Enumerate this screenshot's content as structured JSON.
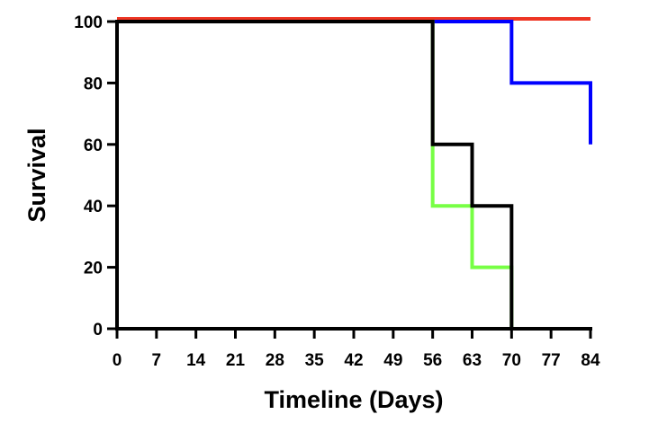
{
  "chart_data": {
    "type": "line",
    "style": "step",
    "title": "",
    "xlabel": "Timeline (Days)",
    "ylabel": "Survival",
    "xlim": [
      0,
      84
    ],
    "ylim": [
      0,
      100
    ],
    "xticks": [
      0,
      7,
      14,
      21,
      28,
      35,
      42,
      49,
      56,
      63,
      70,
      77,
      84
    ],
    "yticks": [
      0,
      20,
      40,
      60,
      80,
      100
    ],
    "grid": false,
    "legend": "none",
    "series": [
      {
        "name": "red",
        "color": "#ee3524",
        "x": [
          0,
          84
        ],
        "y": [
          100,
          100
        ]
      },
      {
        "name": "blue",
        "color": "#0000ff",
        "x": [
          0,
          70,
          84,
          84
        ],
        "y": [
          100,
          80,
          80,
          60
        ]
      },
      {
        "name": "green",
        "color": "#77ff44",
        "x": [
          0,
          56,
          63,
          70
        ],
        "y": [
          100,
          40,
          20,
          0
        ]
      },
      {
        "name": "black",
        "color": "#000000",
        "x": [
          0,
          56,
          63,
          70
        ],
        "y": [
          100,
          60,
          40,
          0
        ]
      }
    ]
  }
}
